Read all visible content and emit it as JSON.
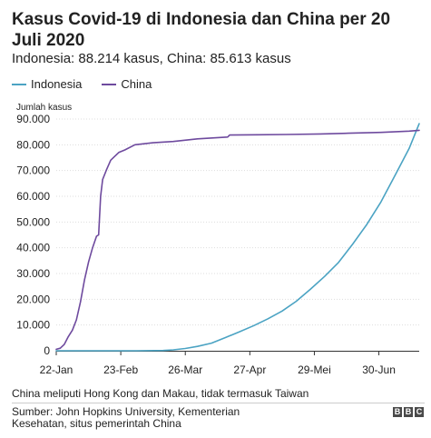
{
  "header": {
    "title": "Kasus Covid-19 di Indonesia dan China per 20 Juli 2020",
    "subtitle": "Indonesia: 88.214 kasus, China: 85.613 kasus"
  },
  "footer": {
    "note": "China meliputi Hong Kong dan Makau, tidak termasuk Taiwan",
    "source": "Sumber: John Hopkins University, Kementerian Kesehatan, situs pemerintah China",
    "logo_letters": [
      "B",
      "B",
      "C"
    ]
  },
  "chart_data": {
    "type": "line",
    "title": "Kasus Covid-19 di Indonesia dan China per 20 Juli 2020",
    "subtitle": "Indonesia: 88.214 kasus, China: 85.613 kasus",
    "ylabel": "Jumlah kasus",
    "xlabel": "",
    "ylim": [
      0,
      90000
    ],
    "y_ticks": [
      0,
      10000,
      20000,
      30000,
      40000,
      50000,
      60000,
      70000,
      80000,
      90000
    ],
    "y_tick_labels": [
      "0",
      "10.000",
      "20.000",
      "30.000",
      "40.000",
      "50.000",
      "60.000",
      "70.000",
      "80.000",
      "90.000"
    ],
    "x_tick_labels": [
      "22-Jan",
      "23-Feb",
      "26-Mar",
      "27-Apr",
      "29-Mei",
      "30-Jun"
    ],
    "x_ticks": [
      "2020-01-22",
      "2020-02-23",
      "2020-03-26",
      "2020-04-27",
      "2020-05-29",
      "2020-06-30"
    ],
    "xlim": [
      "2020-01-22",
      "2020-07-20"
    ],
    "grid": true,
    "legend_position": "top-left",
    "series": [
      {
        "name": "Indonesia",
        "color": "#4ba3c3",
        "points": [
          [
            "2020-01-22",
            0
          ],
          [
            "2020-03-02",
            2
          ],
          [
            "2020-03-15",
            117
          ],
          [
            "2020-03-20",
            369
          ],
          [
            "2020-03-26",
            893
          ],
          [
            "2020-04-01",
            1677
          ],
          [
            "2020-04-08",
            2956
          ],
          [
            "2020-04-15",
            5136
          ],
          [
            "2020-04-22",
            7418
          ],
          [
            "2020-04-29",
            9771
          ],
          [
            "2020-05-06",
            12438
          ],
          [
            "2020-05-13",
            15438
          ],
          [
            "2020-05-20",
            19189
          ],
          [
            "2020-05-27",
            23851
          ],
          [
            "2020-06-03",
            28818
          ],
          [
            "2020-06-10",
            34316
          ],
          [
            "2020-06-17",
            41431
          ],
          [
            "2020-06-24",
            49009
          ],
          [
            "2020-07-01",
            57770
          ],
          [
            "2020-07-08",
            68079
          ],
          [
            "2020-07-15",
            78572
          ],
          [
            "2020-07-20",
            88214
          ]
        ]
      },
      {
        "name": "China",
        "color": "#6e4a9e",
        "points": [
          [
            "2020-01-22",
            548
          ],
          [
            "2020-01-24",
            1000
          ],
          [
            "2020-01-26",
            2500
          ],
          [
            "2020-01-28",
            5500
          ],
          [
            "2020-01-30",
            8000
          ],
          [
            "2020-02-01",
            12000
          ],
          [
            "2020-02-03",
            19000
          ],
          [
            "2020-02-05",
            27500
          ],
          [
            "2020-02-07",
            34500
          ],
          [
            "2020-02-09",
            40000
          ],
          [
            "2020-02-11",
            44500
          ],
          [
            "2020-02-12",
            45000
          ],
          [
            "2020-02-13",
            60000
          ],
          [
            "2020-02-14",
            66500
          ],
          [
            "2020-02-16",
            70500
          ],
          [
            "2020-02-18",
            74000
          ],
          [
            "2020-02-20",
            75500
          ],
          [
            "2020-02-22",
            77000
          ],
          [
            "2020-02-25",
            78000
          ],
          [
            "2020-03-01",
            80000
          ],
          [
            "2020-03-10",
            80800
          ],
          [
            "2020-03-20",
            81300
          ],
          [
            "2020-04-01",
            82300
          ],
          [
            "2020-04-16",
            83000
          ],
          [
            "2020-04-17",
            83800
          ],
          [
            "2020-05-01",
            83900
          ],
          [
            "2020-05-15",
            84000
          ],
          [
            "2020-06-01",
            84200
          ],
          [
            "2020-06-15",
            84500
          ],
          [
            "2020-07-01",
            84800
          ],
          [
            "2020-07-15",
            85300
          ],
          [
            "2020-07-20",
            85613
          ]
        ]
      }
    ]
  }
}
